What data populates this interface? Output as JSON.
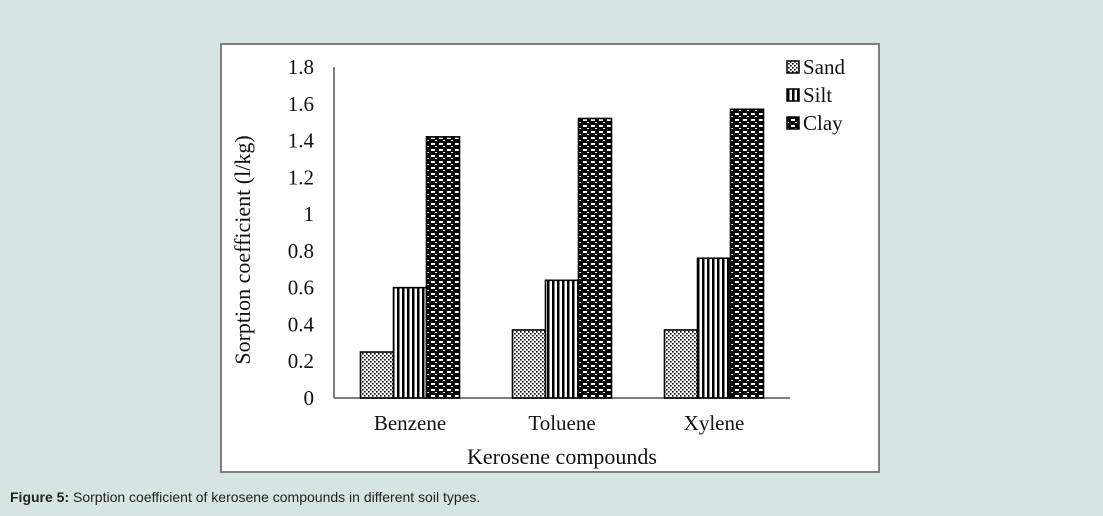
{
  "caption": {
    "label": "Figure 5:",
    "text": " Sorption coefficient of kerosene compounds in different soil types."
  },
  "chart_data": {
    "type": "bar",
    "xlabel": "Kerosene compounds",
    "ylabel": "Sorption coefficient (l/kg)",
    "categories": [
      "Benzene",
      "Toluene",
      "Xylene"
    ],
    "series": [
      {
        "name": "Sand",
        "values": [
          0.25,
          0.37,
          0.37
        ],
        "pattern": "dots",
        "color": "#000000"
      },
      {
        "name": "Silt",
        "values": [
          0.6,
          0.64,
          0.76
        ],
        "pattern": "vertical-lines",
        "color": "#000000"
      },
      {
        "name": "Clay",
        "values": [
          1.42,
          1.52,
          1.57
        ],
        "pattern": "dashes",
        "color": "#000000"
      }
    ],
    "ylim": [
      0,
      1.8
    ],
    "yticks": [
      "0",
      "0.2",
      "0.4",
      "0.6",
      "0.8",
      "1",
      "1.2",
      "1.4",
      "1.6",
      "1.8"
    ],
    "grid": false,
    "legend_position": "top-right"
  }
}
